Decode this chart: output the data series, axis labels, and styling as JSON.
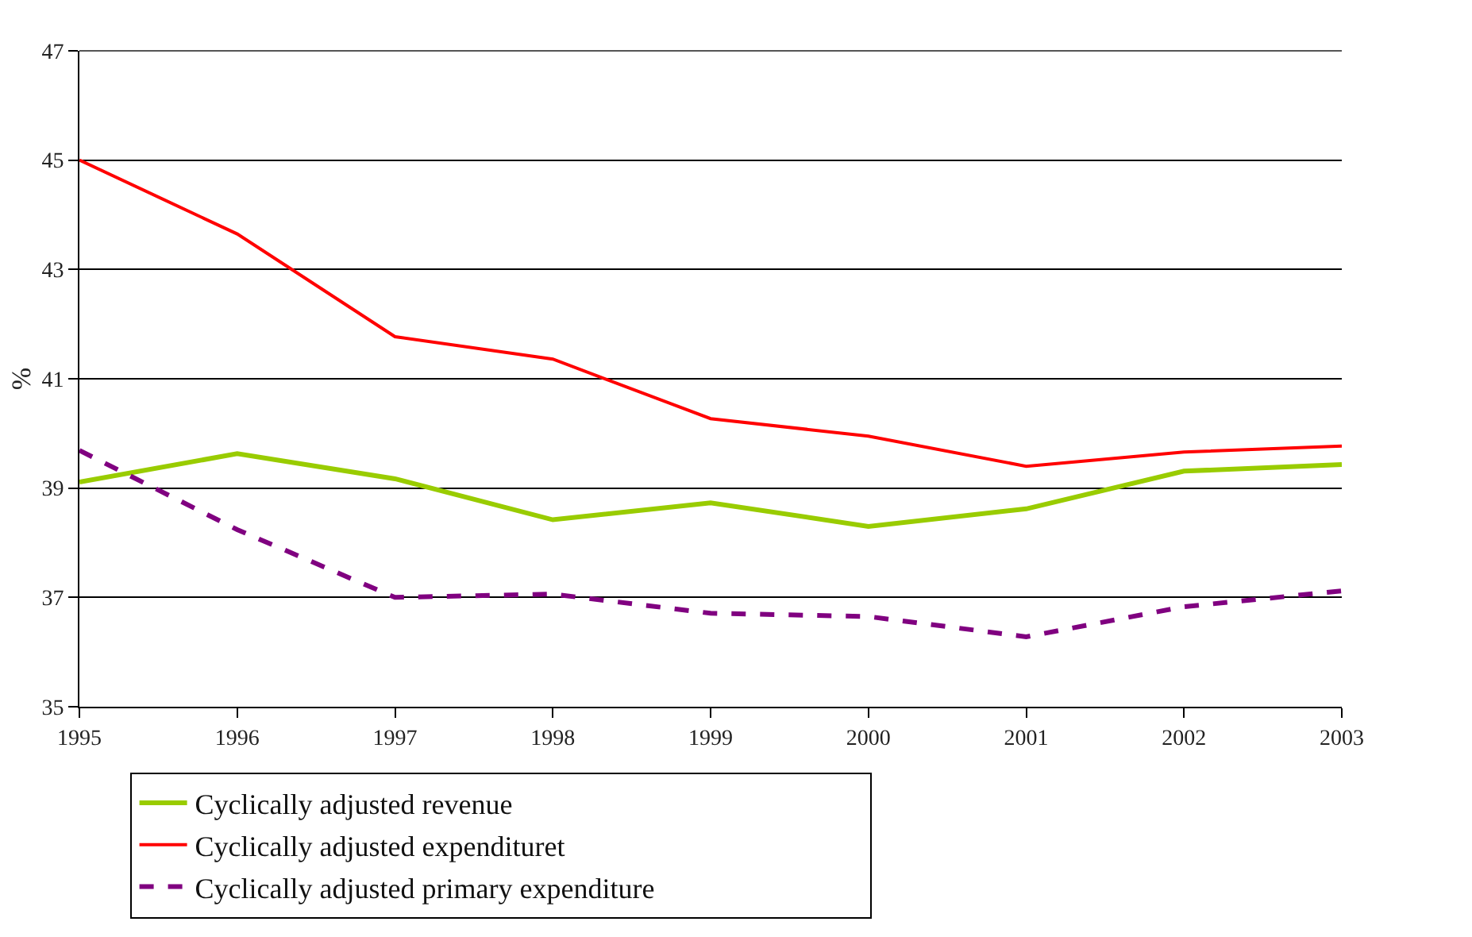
{
  "chart_data": {
    "type": "line",
    "ylabel": "%",
    "x": [
      1995,
      1996,
      1997,
      1998,
      1999,
      2000,
      2001,
      2002,
      2003
    ],
    "xlim": [
      1995,
      2003
    ],
    "xticks": [
      1995,
      1996,
      1997,
      1998,
      1999,
      2000,
      2001,
      2002,
      2003
    ],
    "ylim": [
      35,
      47
    ],
    "yticks": [
      35,
      37,
      39,
      41,
      43,
      45,
      47
    ],
    "grid": "y",
    "legend": "bottom",
    "marker": "none",
    "series": [
      {
        "name": "Cyclically adjusted revenue",
        "color": "#99cc00",
        "values": [
          39.11,
          39.63,
          39.17,
          38.42,
          38.73,
          38.3,
          38.62,
          39.31,
          39.43
        ]
      },
      {
        "name": "Cyclically adjusted expendituret",
        "color": "#ff0000",
        "values": [
          45.0,
          43.65,
          41.77,
          41.36,
          40.27,
          39.95,
          39.4,
          39.66,
          39.77
        ]
      },
      {
        "name": "Cyclically adjusted primary expenditure",
        "color": "#800080",
        "line_style": "dashed",
        "values": [
          39.69,
          38.24,
          37.0,
          37.06,
          36.71,
          36.65,
          36.28,
          36.83,
          37.12
        ]
      }
    ]
  }
}
